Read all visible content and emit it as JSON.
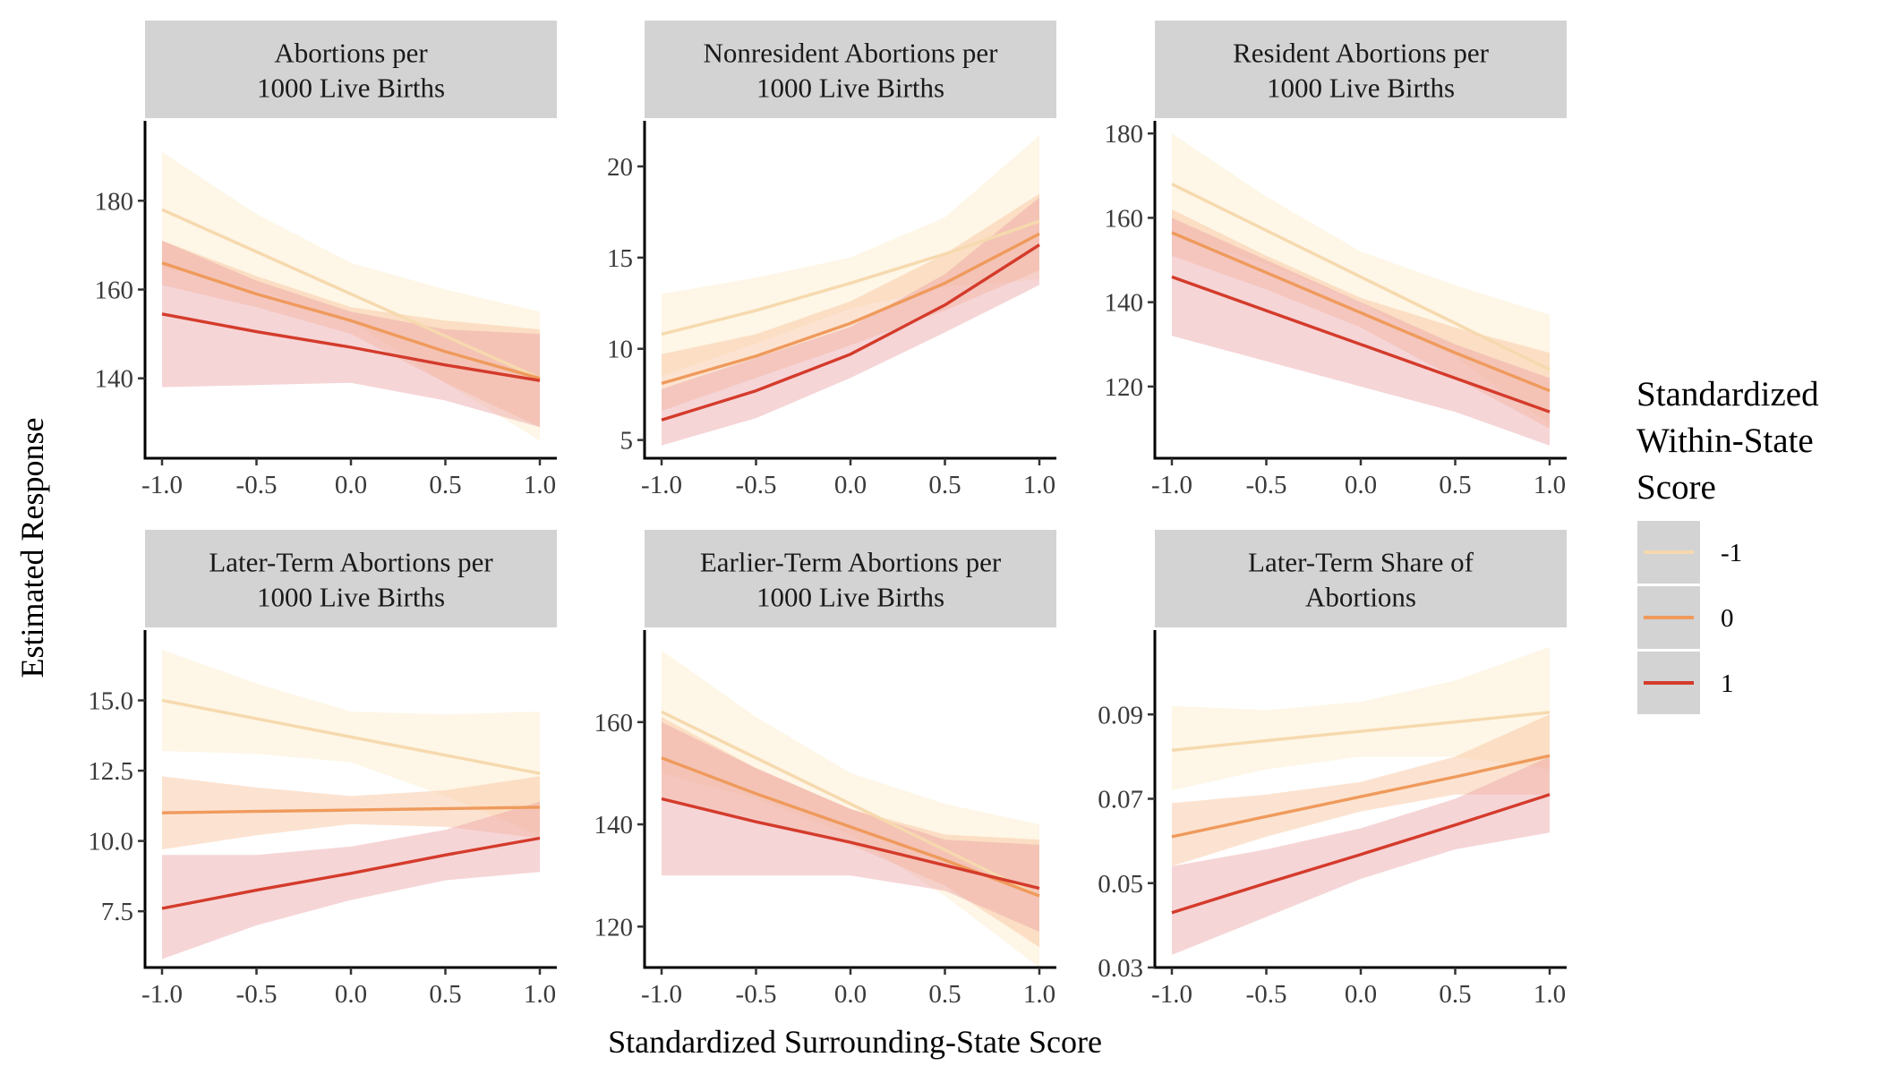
{
  "chart_data": {
    "type": "line",
    "facet_layout": "2 rows x 3 columns",
    "xlabel": "Standardized Surrounding-State Score",
    "ylabel": "Estimated Response",
    "x_ticks": [
      "-1.0",
      "-0.5",
      "0.0",
      "0.5",
      "1.0"
    ],
    "xlim": [
      -1.0,
      1.0
    ],
    "grid": false,
    "legend": {
      "title_lines": [
        "Standardized",
        "Within-State",
        "Score"
      ],
      "placement": "right",
      "items": [
        {
          "label": "-1",
          "color": "#f6d9ae"
        },
        {
          "label": "0",
          "color": "#ef9a5c"
        },
        {
          "label": "1",
          "color": "#d43b2b"
        }
      ]
    },
    "band_colors": {
      "-1": "#fdebc8",
      "0": "#f8c09a",
      "1": "#eba1a6"
    },
    "panels": [
      {
        "title_lines": [
          "Abortions per",
          "1000 Live Births"
        ],
        "ylim": [
          122,
          198
        ],
        "y_ticks": [
          140,
          160,
          180
        ],
        "y_tick_labels": [
          "140",
          "160",
          "180"
        ],
        "series": [
          {
            "name": "-1",
            "x": [
              -1.0,
              -0.5,
              0.0,
              0.5,
              1.0
            ],
            "y": [
              178,
              168.5,
              159,
              149.5,
              140
            ],
            "lower": [
              165,
              160,
              153,
              139,
              126
            ],
            "upper": [
              191,
              177,
              166,
              160,
              155
            ]
          },
          {
            "name": "0",
            "x": [
              -1.0,
              -0.5,
              0.0,
              0.5,
              1.0
            ],
            "y": [
              166,
              159,
              153,
              146,
              140
            ],
            "lower": [
              161,
              156,
              150,
              139,
              129
            ],
            "upper": [
              171,
              163,
              156,
              153,
              151
            ]
          },
          {
            "name": "1",
            "x": [
              -1.0,
              -0.5,
              0.0,
              0.5,
              1.0
            ],
            "y": [
              154.5,
              150.5,
              147,
              143,
              139.5
            ],
            "lower": [
              138,
              138.5,
              139,
              135,
              129
            ],
            "upper": [
              171,
              162,
              155,
              151,
              150
            ]
          }
        ]
      },
      {
        "title_lines": [
          "Nonresident Abortions per",
          "1000 Live Births"
        ],
        "ylim": [
          4,
          22.5
        ],
        "y_ticks": [
          5,
          10,
          15,
          20
        ],
        "y_tick_labels": [
          "5",
          "10",
          "15",
          "20"
        ],
        "series": [
          {
            "name": "-1",
            "x": [
              -1.0,
              -0.5,
              0.0,
              0.5,
              1.0
            ],
            "y": [
              10.8,
              12.1,
              13.6,
              15.2,
              17.0
            ],
            "lower": [
              8.5,
              10.3,
              12.2,
              13.4,
              13.8
            ],
            "upper": [
              13.0,
              13.9,
              15.0,
              17.2,
              21.7
            ]
          },
          {
            "name": "0",
            "x": [
              -1.0,
              -0.5,
              0.0,
              0.5,
              1.0
            ],
            "y": [
              8.1,
              9.6,
              11.4,
              13.6,
              16.3
            ],
            "lower": [
              6.6,
              8.4,
              10.2,
              12.1,
              14.3
            ],
            "upper": [
              9.7,
              10.8,
              12.6,
              15.2,
              18.5
            ]
          },
          {
            "name": "1",
            "x": [
              -1.0,
              -0.5,
              0.0,
              0.5,
              1.0
            ],
            "y": [
              6.1,
              7.7,
              9.7,
              12.4,
              15.7
            ],
            "lower": [
              4.7,
              6.2,
              8.4,
              10.9,
              13.5
            ],
            "upper": [
              7.8,
              9.5,
              11.2,
              14.1,
              18.3
            ]
          }
        ]
      },
      {
        "title_lines": [
          "Resident Abortions per",
          "1000 Live Births"
        ],
        "ylim": [
          103,
          183
        ],
        "y_ticks": [
          120,
          140,
          160,
          180
        ],
        "y_tick_labels": [
          "120",
          "140",
          "160",
          "180"
        ],
        "series": [
          {
            "name": "-1",
            "x": [
              -1.0,
              -0.5,
              0.0,
              0.5,
              1.0
            ],
            "y": [
              168,
              157,
              146,
              135,
              124
            ],
            "lower": [
              156,
              149,
              140,
              127,
              111
            ],
            "upper": [
              180,
              165,
              152,
              144,
              137
            ]
          },
          {
            "name": "0",
            "x": [
              -1.0,
              -0.5,
              0.0,
              0.5,
              1.0
            ],
            "y": [
              156.5,
              147,
              137.5,
              128,
              119
            ],
            "lower": [
              151,
              143,
              134,
              122,
              110
            ],
            "upper": [
              162,
              151,
              141,
              134,
              128
            ]
          },
          {
            "name": "1",
            "x": [
              -1.0,
              -0.5,
              0.0,
              0.5,
              1.0
            ],
            "y": [
              146,
              138,
              130,
              122,
              114
            ],
            "lower": [
              132,
              126,
              120,
              114,
              106
            ],
            "upper": [
              160,
              150,
              140,
              130,
              122
            ]
          }
        ]
      },
      {
        "title_lines": [
          "Later-Term Abortions per",
          "1000 Live Births"
        ],
        "ylim": [
          5.5,
          17.5
        ],
        "y_ticks": [
          7.5,
          10.0,
          12.5,
          15.0
        ],
        "y_tick_labels": [
          "7.5",
          "10.0",
          "12.5",
          "15.0"
        ],
        "series": [
          {
            "name": "-1",
            "x": [
              -1.0,
              -0.5,
              0.0,
              0.5,
              1.0
            ],
            "y": [
              15.0,
              14.35,
              13.7,
              13.05,
              12.4
            ],
            "lower": [
              13.2,
              13.1,
              12.8,
              11.6,
              10.2
            ],
            "upper": [
              16.8,
              15.6,
              14.6,
              14.5,
              14.6
            ]
          },
          {
            "name": "0",
            "x": [
              -1.0,
              -0.5,
              0.0,
              0.5,
              1.0
            ],
            "y": [
              11.0,
              11.05,
              11.1,
              11.15,
              11.2
            ],
            "lower": [
              9.7,
              10.2,
              10.6,
              10.5,
              10.1
            ],
            "upper": [
              12.3,
              11.9,
              11.6,
              11.8,
              12.3
            ]
          },
          {
            "name": "1",
            "x": [
              -1.0,
              -0.5,
              0.0,
              0.5,
              1.0
            ],
            "y": [
              7.6,
              8.25,
              8.85,
              9.5,
              10.1
            ],
            "lower": [
              5.8,
              7.0,
              7.9,
              8.6,
              8.9
            ],
            "upper": [
              9.5,
              9.5,
              9.8,
              10.4,
              11.4
            ]
          }
        ]
      },
      {
        "title_lines": [
          "Earlier-Term Abortions per",
          "1000 Live Births"
        ],
        "ylim": [
          112,
          178
        ],
        "y_ticks": [
          120,
          140,
          160
        ],
        "y_tick_labels": [
          "120",
          "140",
          "160"
        ],
        "series": [
          {
            "name": "-1",
            "x": [
              -1.0,
              -0.5,
              0.0,
              0.5,
              1.0
            ],
            "y": [
              162,
              153,
              144,
              135,
              126
            ],
            "lower": [
              150,
              145,
              138,
              126,
              112
            ],
            "upper": [
              174,
              161,
              150,
              144,
              140
            ]
          },
          {
            "name": "0",
            "x": [
              -1.0,
              -0.5,
              0.0,
              0.5,
              1.0
            ],
            "y": [
              153,
              146,
              139.5,
              133,
              126
            ],
            "lower": [
              145,
              141,
              136,
              128,
              116
            ],
            "upper": [
              161,
              151,
              143,
              138,
              137
            ]
          },
          {
            "name": "1",
            "x": [
              -1.0,
              -0.5,
              0.0,
              0.5,
              1.0
            ],
            "y": [
              145,
              140.5,
              136.5,
              132,
              127.5
            ],
            "lower": [
              130,
              130,
              130,
              127,
              119
            ],
            "upper": [
              160,
              151,
              143,
              137,
              136
            ]
          }
        ]
      },
      {
        "title_lines": [
          "Later-Term Share of",
          "Abortions"
        ],
        "ylim": [
          0.03,
          0.11
        ],
        "y_ticks": [
          0.03,
          0.05,
          0.07,
          0.09
        ],
        "y_tick_labels": [
          "0.03",
          "0.05",
          "0.07",
          "0.09"
        ],
        "series": [
          {
            "name": "-1",
            "x": [
              -1.0,
              -0.5,
              0.0,
              0.5,
              1.0
            ],
            "y": [
              0.0815,
              0.0838,
              0.086,
              0.0882,
              0.0905
            ],
            "lower": [
              0.072,
              0.077,
              0.08,
              0.08,
              0.077
            ],
            "upper": [
              0.092,
              0.091,
              0.093,
              0.098,
              0.106
            ]
          },
          {
            "name": "0",
            "x": [
              -1.0,
              -0.5,
              0.0,
              0.5,
              1.0
            ],
            "y": [
              0.061,
              0.0658,
              0.0705,
              0.0752,
              0.0802
            ],
            "lower": [
              0.054,
              0.061,
              0.067,
              0.071,
              0.071
            ],
            "upper": [
              0.069,
              0.071,
              0.074,
              0.08,
              0.09
            ]
          },
          {
            "name": "1",
            "x": [
              -1.0,
              -0.5,
              0.0,
              0.5,
              1.0
            ],
            "y": [
              0.043,
              0.05,
              0.0568,
              0.0638,
              0.071
            ],
            "lower": [
              0.033,
              0.042,
              0.051,
              0.058,
              0.062
            ],
            "upper": [
              0.054,
              0.058,
              0.063,
              0.07,
              0.08
            ]
          }
        ]
      }
    ]
  }
}
